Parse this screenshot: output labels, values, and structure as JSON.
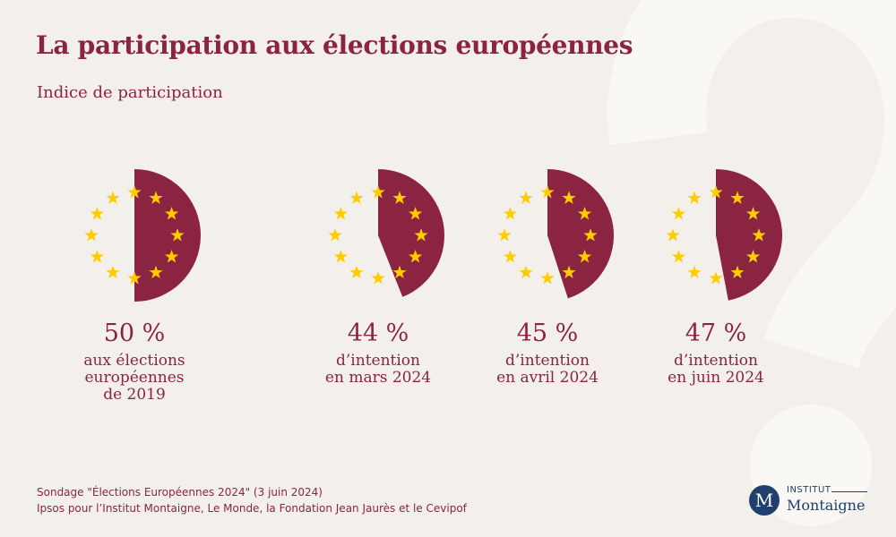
{
  "header": {
    "title": "La participation aux élections européennes",
    "subtitle": "Indice de participation"
  },
  "colors": {
    "background": "#f3f0eb",
    "accent": "#8a2440",
    "star": "#ffcc00",
    "watermark": "#f9f8f5",
    "logo": "#1f3f6e"
  },
  "chart_data": {
    "type": "pie",
    "title": "La participation aux élections européennes",
    "subtitle": "Indice de participation",
    "unit": "%",
    "decoration": "EU flag ring of 12 stars around each half-disc; filled share = participation",
    "categories": [
      "2019",
      "mars 2024",
      "avril 2024",
      "juin 2024"
    ],
    "values": [
      50,
      44,
      45,
      47
    ],
    "items": [
      {
        "value": 50,
        "value_label": "50 %",
        "label_lines": [
          "aux élections",
          "européennes",
          "de 2019"
        ]
      },
      {
        "value": 44,
        "value_label": "44 %",
        "label_lines": [
          "d’intention",
          "en mars 2024"
        ]
      },
      {
        "value": 45,
        "value_label": "45 %",
        "label_lines": [
          "d’intention",
          "en avril 2024"
        ]
      },
      {
        "value": 47,
        "value_label": "47 %",
        "label_lines": [
          "d’intention",
          "en juin 2024"
        ]
      }
    ]
  },
  "footer": {
    "source_line1": "Sondage \"Élections Européennes 2024\" (3 juin 2024)",
    "source_line2": "Ipsos pour l’Institut Montaigne, Le Monde, la Fondation Jean Jaurès et le Cevipof"
  },
  "logo": {
    "badge_letter": "M",
    "top_text": "INSTITUT",
    "bottom_text": "Montaigne"
  }
}
